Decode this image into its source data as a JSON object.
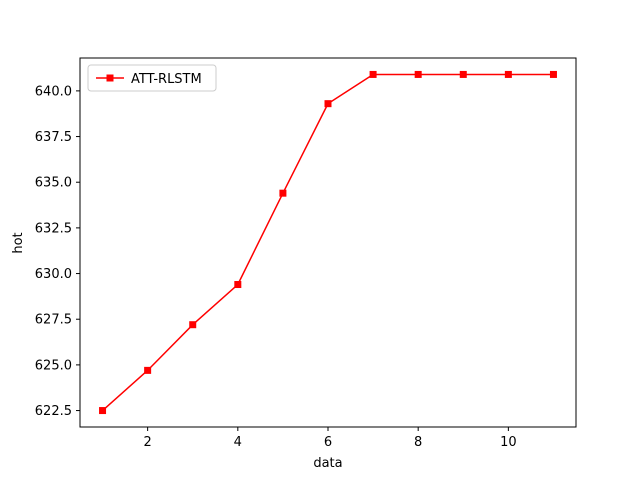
{
  "chart_data": {
    "type": "line",
    "title": "",
    "xlabel": "data",
    "ylabel": "hot",
    "xlim": [
      0.5,
      11.5
    ],
    "ylim": [
      621.6,
      641.8
    ],
    "x_ticks": [
      2,
      4,
      6,
      8,
      10
    ],
    "x_tick_labels": [
      "2",
      "4",
      "6",
      "8",
      "10"
    ],
    "y_ticks": [
      622.5,
      625.0,
      627.5,
      630.0,
      632.5,
      635.0,
      637.5,
      640.0
    ],
    "y_tick_labels": [
      "622.5",
      "625.0",
      "627.5",
      "630.0",
      "632.5",
      "635.0",
      "637.5",
      "640.0"
    ],
    "grid": false,
    "legend_position": "top-left",
    "series": [
      {
        "name": "ATT-RLSTM",
        "color": "#ff0000",
        "marker": "square",
        "x": [
          1,
          2,
          3,
          4,
          5,
          6,
          7,
          8,
          9,
          10,
          11
        ],
        "values": [
          622.5,
          624.7,
          627.2,
          629.4,
          634.4,
          639.3,
          640.9,
          640.9,
          640.9,
          640.9,
          640.9
        ]
      }
    ]
  }
}
